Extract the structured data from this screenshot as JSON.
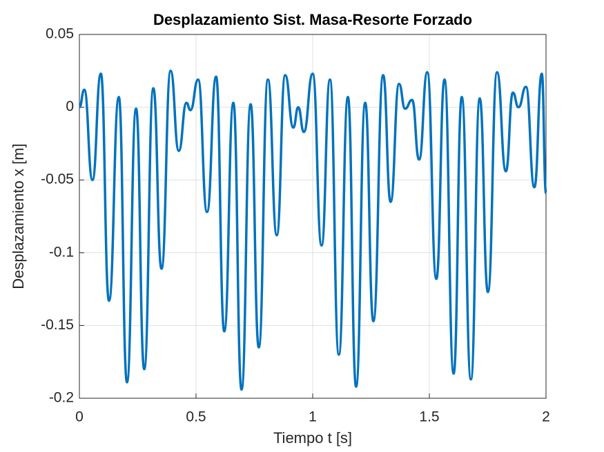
{
  "chart_data": {
    "type": "line",
    "title": "Desplazamiento Sist. Masa-Resorte Forzado",
    "xlabel": "Tiempo t [s]",
    "ylabel": "Desplazamiento x [m]",
    "xlim": [
      0,
      2
    ],
    "xticks": [
      0,
      0.5,
      1,
      1.5,
      2
    ],
    "ylim": [
      -0.2,
      0.05
    ],
    "yticks": [
      -0.2,
      -0.15,
      -0.1,
      -0.05,
      0,
      0.05
    ],
    "grid": true,
    "series": [
      {
        "color": "#0072bd",
        "x": [
          0,
          0.021,
          0.056,
          0.092,
          0.127,
          0.169,
          0.204,
          0.243,
          0.278,
          0.317,
          0.352,
          0.391,
          0.426,
          0.459,
          0.476,
          0.509,
          0.547,
          0.586,
          0.621,
          0.66,
          0.695,
          0.734,
          0.769,
          0.808,
          0.846,
          0.882,
          0.917,
          0.938,
          0.962,
          1.0,
          1.038,
          1.074,
          1.112,
          1.151,
          1.186,
          1.225,
          1.26,
          1.302,
          1.334,
          1.37,
          1.396,
          1.426,
          1.456,
          1.491,
          1.53,
          1.565,
          1.604,
          1.639,
          1.678,
          1.716,
          1.751,
          1.79,
          1.828,
          1.858,
          1.882,
          1.914,
          1.95,
          1.982,
          2.0
        ],
        "values": [
          0,
          0.012,
          -0.05,
          0.023,
          -0.133,
          0.007,
          -0.189,
          -0.001,
          -0.18,
          0.013,
          -0.111,
          0.025,
          -0.03,
          0.003,
          -0.002,
          0.019,
          -0.072,
          0.021,
          -0.154,
          0.003,
          -0.194,
          0.002,
          -0.165,
          0.019,
          -0.088,
          0.022,
          -0.014,
          0.0,
          -0.017,
          0.023,
          -0.095,
          0.019,
          -0.17,
          0.007,
          -0.192,
          0.003,
          -0.147,
          0.022,
          -0.065,
          0.016,
          -0.001,
          0.005,
          -0.036,
          0.024,
          -0.118,
          0.019,
          -0.183,
          0.007,
          -0.187,
          0.006,
          -0.127,
          0.024,
          -0.044,
          0.01,
          0.0,
          0.014,
          -0.055,
          0.023,
          -0.059
        ]
      }
    ]
  }
}
